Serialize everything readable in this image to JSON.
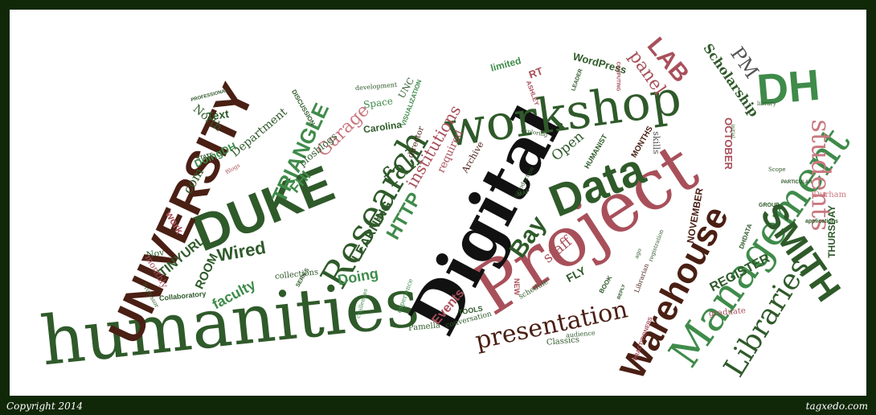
{
  "footer": {
    "copyright": "Copyright 2014",
    "credit": "tagxedo.com"
  },
  "colors": {
    "dark_green": "#2f5a2a",
    "mid_green": "#3f8b4a",
    "maroon": "#4a1f14",
    "rose": "#a8505a",
    "pink": "#c97880",
    "black": "#111111"
  },
  "words": {
    "humanities": "humanities",
    "project": "Project",
    "digital": "Digital",
    "workshop": "workshop",
    "duke": "DUKE",
    "university": "UNIVERSITY",
    "data": "Data",
    "management": "Management",
    "research": "Research",
    "warehouse": "Warehouse",
    "dh": "DH",
    "smith": "SMITH",
    "libraries": "Libraries",
    "students": "students",
    "presentation": "presentation",
    "triangle": "TRIANGLE",
    "http": "HTTP",
    "garage": "Garage",
    "bay": "Bay",
    "fall": "fall",
    "institutions": "institutions",
    "lab": "LAB",
    "scholarship": "Scholarship",
    "panel": "panel",
    "pm": "PM",
    "register": "REGISTER",
    "thursday": "THURSDAY",
    "november": "NOVEMBER",
    "october": "OCTOBER",
    "events": "Events",
    "faculty": "faculty",
    "room": "ROOM",
    "tinyurl": "TINYURL",
    "wired": "Wired",
    "doing": "Doing",
    "learning": "LEARNING",
    "staff": "staff",
    "fly": "FLY",
    "open": "Open",
    "department": "Department",
    "text": "Text",
    "north": "North",
    "carolina": "Carolina",
    "space": "Space",
    "fhi": "FHI",
    "com": "com",
    "doingdh": "DoingDH",
    "plosblogs": "plosblogs",
    "required": "required",
    "wordpress": "WordPress",
    "limited": "limited",
    "rt": "RT",
    "humanist": "HUMANIST",
    "months": "MONTHS",
    "skills": "skills",
    "archive": "Archive",
    "director": "director",
    "unc": "UNC",
    "work": "work",
    "nov": "Nov",
    "monthly": "monthly",
    "collaboratory": "Collaboratory",
    "collections": "collections",
    "series": "SERIES",
    "tools": "TOOLS",
    "pamella": "Pamella",
    "conversation": "conversation",
    "classics": "Classics",
    "new": "NEW",
    "book": "BOOK",
    "schedule": "schedule",
    "audience": "audience",
    "graduate": "graduate",
    "durham": "Durham",
    "applications": "applications",
    "visualization": "VISUALIZATION",
    "development": "development",
    "discussion": "DISCUSSION",
    "professional": "PROFESSIONAL",
    "state": "STATE",
    "blogs": "Blogs",
    "experience": "experience",
    "challenges": "challenges",
    "map": "MAP",
    "team": "TEAM",
    "group": "GROUP",
    "scope": "Scope",
    "library": "library",
    "practitioners": "PRACTITIONERS",
    "professor": "Professor",
    "leader": "LEADER",
    "ashley": "ASHLEY",
    "computing": "COMPUTING",
    "reply": "REPLY",
    "librarian": "Librarian",
    "registration": "registration",
    "introduction": "Introduction",
    "dhdata": "DHDATA",
    "initial": "initial",
    "exploring": "exploring",
    "particular": "PARTICULAR",
    "ago": "ago"
  }
}
